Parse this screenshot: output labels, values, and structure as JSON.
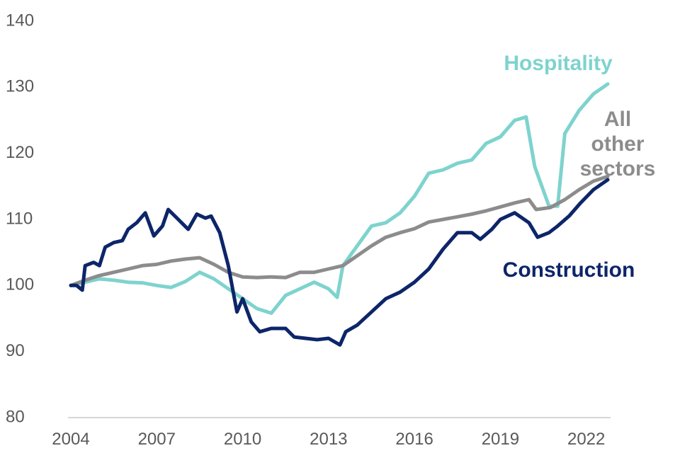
{
  "chart_data": {
    "type": "line",
    "title": "",
    "xlabel": "",
    "ylabel": "",
    "xlim": [
      2004,
      2022.75
    ],
    "ylim": [
      80,
      140
    ],
    "yticks": [
      80,
      90,
      100,
      110,
      120,
      130,
      140
    ],
    "xticks": [
      2004,
      2007,
      2010,
      2013,
      2016,
      2019,
      2022
    ],
    "grid": false,
    "series": [
      {
        "name": "Hospitality",
        "label_lines": [
          "Hospitality"
        ],
        "color": "#7ED3CE",
        "points": [
          [
            2004.0,
            100.0
          ],
          [
            2004.5,
            100.5
          ],
          [
            2005.0,
            101.0
          ],
          [
            2005.5,
            100.8
          ],
          [
            2006.0,
            100.5
          ],
          [
            2006.5,
            100.4
          ],
          [
            2007.0,
            100.0
          ],
          [
            2007.5,
            99.7
          ],
          [
            2008.0,
            100.6
          ],
          [
            2008.5,
            102.0
          ],
          [
            2009.0,
            101.0
          ],
          [
            2009.5,
            99.5
          ],
          [
            2010.0,
            98.0
          ],
          [
            2010.5,
            96.5
          ],
          [
            2011.0,
            95.8
          ],
          [
            2011.5,
            98.5
          ],
          [
            2012.0,
            99.5
          ],
          [
            2012.5,
            100.5
          ],
          [
            2013.0,
            99.5
          ],
          [
            2013.3,
            98.2
          ],
          [
            2013.5,
            103.0
          ],
          [
            2014.0,
            106.0
          ],
          [
            2014.5,
            109.0
          ],
          [
            2015.0,
            109.5
          ],
          [
            2015.5,
            111.0
          ],
          [
            2016.0,
            113.5
          ],
          [
            2016.5,
            117.0
          ],
          [
            2017.0,
            117.5
          ],
          [
            2017.5,
            118.5
          ],
          [
            2018.0,
            119.0
          ],
          [
            2018.5,
            121.5
          ],
          [
            2019.0,
            122.5
          ],
          [
            2019.5,
            125.0
          ],
          [
            2019.9,
            125.5
          ],
          [
            2020.2,
            118.0
          ],
          [
            2020.7,
            112.0
          ],
          [
            2021.0,
            112.0
          ],
          [
            2021.25,
            123.0
          ],
          [
            2021.75,
            126.5
          ],
          [
            2022.25,
            129.0
          ],
          [
            2022.75,
            130.5
          ]
        ]
      },
      {
        "name": "All other sectors",
        "label_lines": [
          "All",
          "other",
          "sectors"
        ],
        "color": "#8C8C8C",
        "points": [
          [
            2004.0,
            100.0
          ],
          [
            2004.5,
            100.8
          ],
          [
            2005.0,
            101.5
          ],
          [
            2005.5,
            102.0
          ],
          [
            2006.0,
            102.5
          ],
          [
            2006.5,
            103.0
          ],
          [
            2007.0,
            103.2
          ],
          [
            2007.5,
            103.7
          ],
          [
            2008.0,
            104.0
          ],
          [
            2008.5,
            104.2
          ],
          [
            2009.0,
            103.2
          ],
          [
            2009.5,
            102.0
          ],
          [
            2010.0,
            101.3
          ],
          [
            2010.5,
            101.2
          ],
          [
            2011.0,
            101.3
          ],
          [
            2011.5,
            101.2
          ],
          [
            2012.0,
            102.0
          ],
          [
            2012.5,
            102.0
          ],
          [
            2013.0,
            102.5
          ],
          [
            2013.5,
            103.0
          ],
          [
            2014.0,
            104.5
          ],
          [
            2014.5,
            106.0
          ],
          [
            2015.0,
            107.3
          ],
          [
            2015.5,
            108.0
          ],
          [
            2016.0,
            108.6
          ],
          [
            2016.5,
            109.6
          ],
          [
            2017.0,
            110.0
          ],
          [
            2017.5,
            110.4
          ],
          [
            2018.0,
            110.8
          ],
          [
            2018.5,
            111.3
          ],
          [
            2019.0,
            111.9
          ],
          [
            2019.5,
            112.5
          ],
          [
            2020.0,
            113.0
          ],
          [
            2020.25,
            111.5
          ],
          [
            2020.75,
            111.8
          ],
          [
            2021.25,
            113.0
          ],
          [
            2021.75,
            114.5
          ],
          [
            2022.25,
            115.8
          ],
          [
            2022.75,
            116.5
          ]
        ]
      },
      {
        "name": "Construction",
        "label_lines": [
          "Construction"
        ],
        "color": "#0D2569",
        "points": [
          [
            2004.0,
            100.0
          ],
          [
            2004.2,
            100.0
          ],
          [
            2004.4,
            99.3
          ],
          [
            2004.5,
            103.0
          ],
          [
            2004.8,
            103.5
          ],
          [
            2005.0,
            103.0
          ],
          [
            2005.2,
            105.8
          ],
          [
            2005.5,
            106.5
          ],
          [
            2005.8,
            106.8
          ],
          [
            2006.0,
            108.5
          ],
          [
            2006.3,
            109.5
          ],
          [
            2006.6,
            111.0
          ],
          [
            2006.9,
            107.5
          ],
          [
            2007.2,
            109.0
          ],
          [
            2007.4,
            111.5
          ],
          [
            2007.8,
            109.8
          ],
          [
            2008.1,
            108.5
          ],
          [
            2008.4,
            110.8
          ],
          [
            2008.7,
            110.2
          ],
          [
            2008.9,
            110.5
          ],
          [
            2009.2,
            108.0
          ],
          [
            2009.5,
            103.0
          ],
          [
            2009.8,
            96.0
          ],
          [
            2010.0,
            98.0
          ],
          [
            2010.3,
            94.5
          ],
          [
            2010.6,
            93.0
          ],
          [
            2011.0,
            93.5
          ],
          [
            2011.5,
            93.5
          ],
          [
            2011.8,
            92.2
          ],
          [
            2012.2,
            92.0
          ],
          [
            2012.6,
            91.8
          ],
          [
            2013.0,
            92.0
          ],
          [
            2013.4,
            91.0
          ],
          [
            2013.6,
            93.0
          ],
          [
            2014.0,
            94.0
          ],
          [
            2014.5,
            96.0
          ],
          [
            2015.0,
            98.0
          ],
          [
            2015.5,
            99.0
          ],
          [
            2016.0,
            100.5
          ],
          [
            2016.5,
            102.5
          ],
          [
            2017.0,
            105.5
          ],
          [
            2017.5,
            108.0
          ],
          [
            2018.0,
            108.0
          ],
          [
            2018.3,
            107.0
          ],
          [
            2018.7,
            108.5
          ],
          [
            2019.0,
            110.0
          ],
          [
            2019.5,
            111.0
          ],
          [
            2020.0,
            109.5
          ],
          [
            2020.3,
            107.3
          ],
          [
            2020.7,
            108.0
          ],
          [
            2021.0,
            109.0
          ],
          [
            2021.4,
            110.5
          ],
          [
            2021.8,
            112.5
          ],
          [
            2022.25,
            114.5
          ],
          [
            2022.75,
            116.0
          ]
        ]
      }
    ]
  }
}
